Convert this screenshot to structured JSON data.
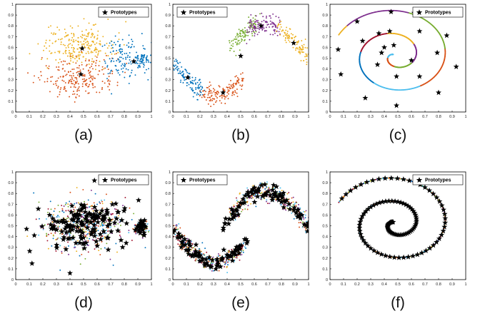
{
  "figure": {
    "captions": [
      "(a)",
      "(b)",
      "(c)",
      "(d)",
      "(e)",
      "(f)"
    ],
    "legend_label": "Prototypes"
  },
  "colors": {
    "c1": "#0072BD",
    "c2": "#D95319",
    "c3": "#EDB120",
    "c4": "#7E2F8E",
    "c5": "#77AC30",
    "c6": "#4DBEEE",
    "c7": "#A2142F",
    "star": "#000000"
  },
  "chart_data": [
    {
      "id": "a",
      "type": "scatter",
      "caption": "(a)",
      "xlim": [
        0,
        1
      ],
      "ylim": [
        0,
        1
      ],
      "xticks": [
        "0",
        "0.1",
        "0.2",
        "0.3",
        "0.4",
        "0.5",
        "0.6",
        "0.7",
        "0.8",
        "0.9",
        "1"
      ],
      "yticks": [
        "0",
        "0.1",
        "0.2",
        "0.3",
        "0.4",
        "0.5",
        "0.6",
        "0.7",
        "0.8",
        "0.9",
        "1"
      ],
      "legend": [
        "Prototypes"
      ],
      "legend_position": "top-right",
      "clusters": [
        {
          "color": "c3",
          "center": [
            0.46,
            0.62
          ],
          "spread": [
            0.13,
            0.09
          ],
          "count": 240
        },
        {
          "color": "c2",
          "center": [
            0.46,
            0.33
          ],
          "spread": [
            0.14,
            0.09
          ],
          "count": 220
        },
        {
          "color": "c1",
          "center": [
            0.8,
            0.5
          ],
          "spread": [
            0.08,
            0.11
          ],
          "count": 120
        },
        {
          "color": "c1",
          "center": [
            0.93,
            0.48
          ],
          "spread": [
            0.03,
            0.04
          ],
          "count": 60
        }
      ],
      "prototypes": [
        [
          0.49,
          0.59
        ],
        [
          0.48,
          0.35
        ],
        [
          0.87,
          0.47
        ]
      ]
    },
    {
      "id": "b",
      "type": "scatter",
      "caption": "(b)",
      "xlim": [
        0,
        1
      ],
      "ylim": [
        0,
        1
      ],
      "xticks": [
        "0",
        "0.1",
        "0.2",
        "0.3",
        "0.4",
        "0.5",
        "0.6",
        "0.7",
        "0.8",
        "0.9",
        "1"
      ],
      "yticks": [
        "0",
        "0.1",
        "0.2",
        "0.3",
        "0.4",
        "0.5",
        "0.6",
        "0.7",
        "0.8",
        "0.9",
        "1"
      ],
      "legend": [
        "Prototypes"
      ],
      "legend_position": "top-left",
      "moons": [
        {
          "color": "c1",
          "x_range": [
            0.0,
            0.22
          ],
          "shape": "lower",
          "count": 110
        },
        {
          "color": "c2",
          "x_range": [
            0.22,
            0.52
          ],
          "shape": "lower",
          "count": 140
        },
        {
          "color": "c5",
          "x_range": [
            0.42,
            0.62
          ],
          "shape": "upper",
          "count": 110
        },
        {
          "color": "c4",
          "x_range": [
            0.55,
            0.78
          ],
          "shape": "upper",
          "count": 120
        },
        {
          "color": "c3",
          "x_range": [
            0.78,
            1.0
          ],
          "shape": "upper",
          "count": 110
        }
      ],
      "prototypes": [
        [
          0.11,
          0.32
        ],
        [
          0.37,
          0.18
        ],
        [
          0.5,
          0.52
        ],
        [
          0.65,
          0.8
        ],
        [
          0.89,
          0.64
        ]
      ]
    },
    {
      "id": "c",
      "type": "scatter",
      "caption": "(c)",
      "xlim": [
        0,
        1
      ],
      "ylim": [
        0,
        1
      ],
      "xticks": [
        "0",
        "0.1",
        "0.2",
        "0.3",
        "0.4",
        "0.5",
        "0.6",
        "0.7",
        "0.8",
        "0.9",
        "1"
      ],
      "yticks": [
        "0",
        "0.1",
        "0.2",
        "0.3",
        "0.4",
        "0.5",
        "0.6",
        "0.7",
        "0.8",
        "0.9",
        "1"
      ],
      "legend": [
        "Prototypes"
      ],
      "legend_position": "top-right",
      "spiral_colors": [
        "c6",
        "c2",
        "c5",
        "c4",
        "c3",
        "c7",
        "c1"
      ],
      "prototypes": [
        [
          0.06,
          0.58
        ],
        [
          0.08,
          0.35
        ],
        [
          0.2,
          0.84
        ],
        [
          0.26,
          0.13
        ],
        [
          0.24,
          0.66
        ],
        [
          0.35,
          0.44
        ],
        [
          0.36,
          0.73
        ],
        [
          0.38,
          0.55
        ],
        [
          0.4,
          0.6
        ],
        [
          0.44,
          0.75
        ],
        [
          0.45,
          0.93
        ],
        [
          0.47,
          0.62
        ],
        [
          0.49,
          0.06
        ],
        [
          0.49,
          0.33
        ],
        [
          0.6,
          0.48
        ],
        [
          0.62,
          0.92
        ],
        [
          0.66,
          0.33
        ],
        [
          0.66,
          0.75
        ],
        [
          0.79,
          0.55
        ],
        [
          0.8,
          0.18
        ],
        [
          0.86,
          0.71
        ],
        [
          0.93,
          0.42
        ]
      ]
    },
    {
      "id": "d",
      "type": "scatter",
      "caption": "(d)",
      "xlim": [
        0,
        1
      ],
      "ylim": [
        0,
        1
      ],
      "xticks": [
        "0",
        "0.1",
        "0.2",
        "0.3",
        "0.4",
        "0.5",
        "0.6",
        "0.7",
        "0.8",
        "0.9",
        "1"
      ],
      "yticks": [
        "0",
        "0.1",
        "0.2",
        "0.3",
        "0.4",
        "0.5",
        "0.6",
        "0.7",
        "0.8",
        "0.9",
        "1"
      ],
      "legend": [
        "Prototypes"
      ],
      "legend_position": "top-right",
      "clusters": [
        {
          "color": "mixed",
          "center": [
            0.5,
            0.5
          ],
          "spread": [
            0.16,
            0.13
          ],
          "count": 420
        },
        {
          "color": "mixed",
          "center": [
            0.93,
            0.48
          ],
          "spread": [
            0.025,
            0.035
          ],
          "count": 70
        }
      ],
      "prototypes": [
        [
          0.08,
          0.47
        ],
        [
          0.12,
          0.15
        ],
        [
          0.4,
          0.06
        ],
        [
          0.58,
          0.92
        ],
        [
          0.92,
          0.48
        ]
      ]
    },
    {
      "id": "e",
      "type": "scatter",
      "caption": "(e)",
      "xlim": [
        0,
        1
      ],
      "ylim": [
        0,
        1
      ],
      "xticks": [
        "0",
        "0.1",
        "0.2",
        "0.3",
        "0.4",
        "0.5",
        "0.6",
        "0.7",
        "0.8",
        "0.9",
        "1"
      ],
      "yticks": [
        "0",
        "0.1",
        "0.2",
        "0.3",
        "0.4",
        "0.5",
        "0.6",
        "0.7",
        "0.8",
        "0.9",
        "1"
      ],
      "legend": [
        "Prototypes"
      ],
      "legend_position": "top-left",
      "moons": [
        {
          "color": "mixed",
          "x_range": [
            0.0,
            0.52
          ],
          "shape": "lower",
          "count": 260
        },
        {
          "color": "mixed",
          "x_range": [
            0.42,
            1.0
          ],
          "shape": "upper",
          "count": 300
        }
      ],
      "prototypes": []
    },
    {
      "id": "f",
      "type": "scatter",
      "caption": "(f)",
      "xlim": [
        0,
        1
      ],
      "ylim": [
        0,
        1
      ],
      "xticks": [
        "0",
        "0.1",
        "0.2",
        "0.3",
        "0.4",
        "0.5",
        "0.6",
        "0.7",
        "0.8",
        "0.9",
        "1"
      ],
      "yticks": [
        "0",
        "0.1",
        "0.2",
        "0.3",
        "0.4",
        "0.5",
        "0.6",
        "0.7",
        "0.8",
        "0.9",
        "1"
      ],
      "legend": [
        "Prototypes"
      ],
      "legend_position": "top-right",
      "spiral_colors": [
        "mixed"
      ],
      "prototypes": []
    }
  ]
}
